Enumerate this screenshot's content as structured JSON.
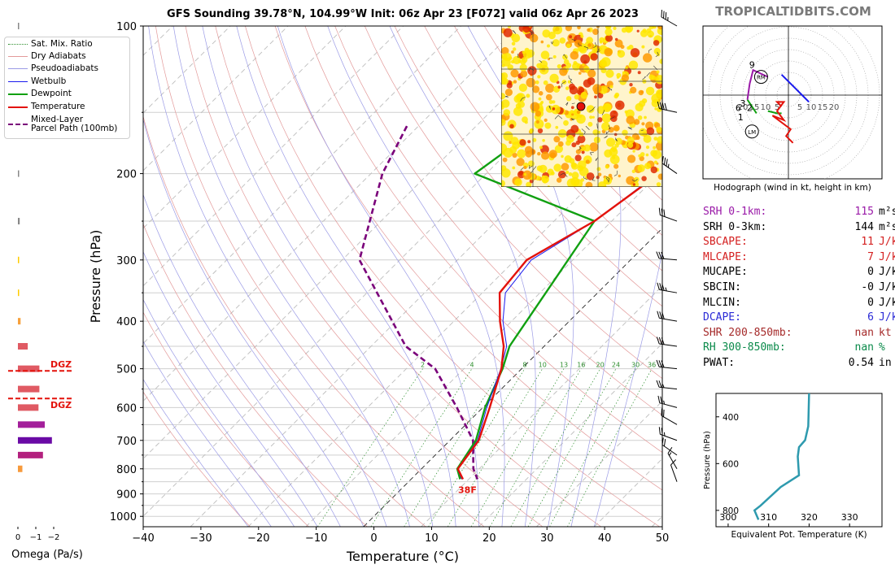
{
  "title": "GFS Sounding 39.78°N, 104.99°W Init: 06z Apr 23 [F072] valid 06z Apr 26 2023",
  "brand": "TROPICALTIDBITS.COM",
  "colors": {
    "temperature": "#e3120b",
    "dewpoint": "#11a011",
    "parcel": "#7a007a",
    "wetbulb": "#1a1aee",
    "dry_adiabat": "#e39a9a",
    "pseudo_adiabat": "#9b9be6",
    "mixing_ratio": "#2f8f2f",
    "hodograph_srh": "#9a1aa8",
    "theta_e": "#2e9aae"
  },
  "legend": [
    {
      "label": "Sat. Mix. Ratio",
      "style": "dotted",
      "color": "#2f8f2f"
    },
    {
      "label": "Dry Adiabats",
      "style": "solid-thin",
      "color": "#e39a9a"
    },
    {
      "label": "Pseudoadiabats",
      "style": "solid-thin",
      "color": "#9b9be6"
    },
    {
      "label": "Wetbulb",
      "style": "solid-thin",
      "color": "#1a1aee"
    },
    {
      "label": "Dewpoint",
      "style": "solid-thick",
      "color": "#11a011"
    },
    {
      "label": "Temperature",
      "style": "solid-thick",
      "color": "#e3120b"
    },
    {
      "label": "Mixed-Layer\nParcel Path (100mb)",
      "style": "dashed-thick",
      "color": "#7a007a"
    }
  ],
  "skewt": {
    "xlabel": "Temperature (°C)",
    "ylabel": "Pressure (hPa)",
    "x_ticks": [
      "−40",
      "−30",
      "−20",
      "−10",
      "0",
      "10",
      "20",
      "30",
      "40",
      "50"
    ],
    "y_ticks": [
      "100",
      "200",
      "300",
      "400",
      "500",
      "600",
      "700",
      "800",
      "900",
      "1000"
    ],
    "surface_label": "38F",
    "mixing_ratio_labels": [
      "2",
      "4",
      "6",
      "8",
      "10",
      "13",
      "16",
      "20",
      "24",
      "30",
      "36"
    ]
  },
  "omega": {
    "xlabel": "Omega (Pa/s)",
    "x_ticks": [
      "0",
      "−1",
      "−2"
    ],
    "dgz_label": "DGZ"
  },
  "hodograph": {
    "caption": "Hodograph (wind in kt, height in km)",
    "ring_labels_left": [
      "20",
      "15",
      "10",
      "5"
    ],
    "ring_labels_right": [
      "5",
      "10",
      "15",
      "20"
    ],
    "rm_label": "RM",
    "lm_label": "LM",
    "height_labels": [
      "9",
      "3",
      "2",
      "1",
      "6"
    ]
  },
  "indices": [
    {
      "label": "SRH 0-1km:",
      "value": "115",
      "unit": "m²s⁻²",
      "color": "#9a1aa8"
    },
    {
      "label": "SRH 0-3km:",
      "value": "144",
      "unit": "m²s⁻²",
      "color": "#000000"
    },
    {
      "label": "SBCAPE:",
      "value": "11",
      "unit": "J/kg",
      "color": "#d42020"
    },
    {
      "label": "MLCAPE:",
      "value": "7",
      "unit": "J/kg",
      "color": "#d42020"
    },
    {
      "label": "MUCAPE:",
      "value": "0",
      "unit": "J/kg",
      "color": "#000000"
    },
    {
      "label": "SBCIN:",
      "value": "-0",
      "unit": "J/kg",
      "color": "#000000"
    },
    {
      "label": "MLCIN:",
      "value": "0",
      "unit": "J/kg",
      "color": "#000000"
    },
    {
      "label": "DCAPE:",
      "value": "6",
      "unit": "J/kg",
      "color": "#2a2ad6"
    },
    {
      "label": "SHR 200-850mb:",
      "value": "nan",
      "unit": "kt",
      "color": "#a52a2a"
    },
    {
      "label": "RH 300-850mb:",
      "value": "nan",
      "unit": "%",
      "color": "#0a8a4a"
    },
    {
      "label": "PWAT:",
      "value": "0.54",
      "unit": "in",
      "color": "#000000"
    }
  ],
  "theta_e_panel": {
    "xlabel": "Equivalent Pot. Temperature (K)",
    "ylabel": "Pressure (hPa)",
    "x_ticks": [
      "300",
      "310",
      "320",
      "330"
    ],
    "y_ticks": [
      "400",
      "600",
      "800"
    ]
  },
  "chart_data": [
    {
      "type": "line",
      "name": "skew-t",
      "x_unit": "°C",
      "y_unit": "hPa",
      "xlim": [
        -40,
        50
      ],
      "ylim": [
        1050,
        100
      ],
      "y_scale": "log",
      "skew": "45°",
      "series": [
        {
          "name": "Temperature",
          "points": [
            [
              -6,
              100
            ],
            [
              -7.8,
              150
            ],
            [
              -10,
              200
            ],
            [
              -13,
              250
            ],
            [
              -18,
              300
            ],
            [
              -17,
              350
            ],
            [
              -12,
              400
            ],
            [
              -7,
              450
            ],
            [
              -3.5,
              500
            ],
            [
              1.2,
              600
            ],
            [
              5,
              700
            ],
            [
              6.3,
              800
            ],
            [
              9,
              840
            ]
          ]
        },
        {
          "name": "Dewpoint",
          "points": [
            [
              -23,
              100
            ],
            [
              -38,
              150
            ],
            [
              -42,
              200
            ],
            [
              -13,
              250
            ],
            [
              -6,
              450
            ],
            [
              -3.3,
              500
            ],
            [
              0.4,
              600
            ],
            [
              4.5,
              700
            ],
            [
              6.2,
              800
            ],
            [
              8.5,
              840
            ]
          ]
        },
        {
          "name": "Wetbulb",
          "points": [
            [
              -6.2,
              100
            ],
            [
              -8,
              150
            ],
            [
              -10.3,
              200
            ],
            [
              -13,
              250
            ],
            [
              -17.2,
              300
            ],
            [
              -16,
              350
            ],
            [
              -11.5,
              400
            ],
            [
              -6.5,
              450
            ],
            [
              -3.6,
              500
            ],
            [
              0.7,
              600
            ],
            [
              4.8,
              700
            ],
            [
              6.25,
              800
            ],
            [
              8.8,
              840
            ]
          ]
        },
        {
          "name": "Mixed-Layer Parcel Path (100mb)",
          "points": [
            [
              -62,
              160
            ],
            [
              -58,
              200
            ],
            [
              -47,
              300
            ],
            [
              -24,
              450
            ],
            [
              -15,
              500
            ],
            [
              -4.5,
              600
            ],
            [
              4,
              700
            ],
            [
              9,
              800
            ],
            [
              11.5,
              840
            ]
          ]
        }
      ],
      "omega_levels_hpa": [
        100,
        200,
        250,
        300,
        350,
        400,
        450,
        500,
        550,
        600,
        650,
        700,
        750,
        800
      ],
      "omega_values": [
        0,
        0,
        -0.1,
        -0.05,
        -0.03,
        -0.15,
        -0.55,
        -1.2,
        -1.2,
        -1.15,
        -1.5,
        -1.9,
        -1.4,
        -0.25
      ],
      "dgz_hpa": [
        505,
        575
      ]
    },
    {
      "type": "line",
      "name": "hodograph",
      "x_unit": "kt",
      "y_unit": "kt",
      "series": [
        {
          "name": "0-3 km",
          "points": [
            [
              -18,
              -2
            ],
            [
              -16,
              -5
            ],
            [
              -14,
              -8
            ]
          ]
        },
        {
          "name": "3-9 km",
          "points": [
            [
              -18,
              -2
            ],
            [
              -17,
              5
            ],
            [
              -15.5,
              11
            ],
            [
              -9,
              8
            ]
          ]
        },
        {
          "name": "lowest levels",
          "points": [
            [
              -9,
              -7
            ],
            [
              -5,
              -8
            ],
            [
              -3,
              -8
            ]
          ]
        },
        {
          "name": "red segment",
          "points": [
            [
              -3,
              -5
            ],
            [
              -5,
              -3
            ],
            [
              -2,
              -3
            ],
            [
              -5,
              -7
            ],
            [
              -2,
              -11
            ],
            [
              -7,
              -9
            ],
            [
              1,
              -15
            ],
            [
              -1,
              -18
            ],
            [
              2,
              -21
            ]
          ]
        },
        {
          "name": "blue segment",
          "points": [
            [
              -3,
              9
            ],
            [
              0,
              6
            ],
            [
              3,
              3
            ],
            [
              6,
              0
            ],
            [
              9,
              -3
            ]
          ]
        }
      ],
      "storm_motion": {
        "RM": [
          -12,
          8
        ],
        "LM": [
          -16,
          -16
        ]
      }
    },
    {
      "type": "line",
      "name": "theta-e",
      "x_unit": "K",
      "y_unit": "hPa",
      "xlim": [
        297,
        338
      ],
      "ylim": [
        870,
        300
      ],
      "series": [
        {
          "name": "Equivalent Pot. Temperature",
          "points": [
            [
              320,
              300
            ],
            [
              319.8,
              440
            ],
            [
              319,
              500
            ],
            [
              317.5,
              530
            ],
            [
              317.2,
              570
            ],
            [
              317.5,
              650
            ],
            [
              313,
              700
            ],
            [
              308,
              780
            ],
            [
              306.5,
              800
            ],
            [
              307.5,
              840
            ]
          ]
        }
      ]
    }
  ]
}
